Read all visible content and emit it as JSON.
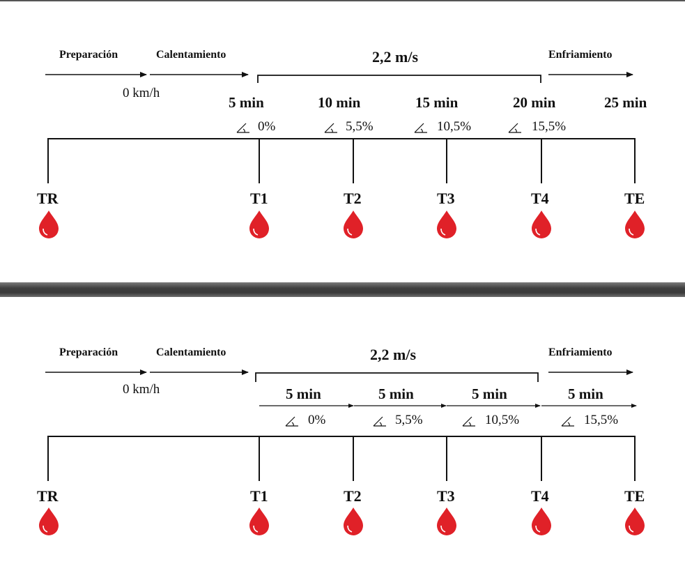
{
  "top": {
    "phases": {
      "preparation": "Preparación",
      "warmup": "Calentamiento",
      "cooldown": "Enfriamiento"
    },
    "speed": "2,2 m/s",
    "rest_speed": "0 km/h",
    "times": [
      "5 min",
      "10 min",
      "15 min",
      "20 min",
      "25 min"
    ],
    "slopes": [
      "0%",
      "5,5%",
      "10,5%",
      "15,5%"
    ],
    "points": [
      "TR",
      "T1",
      "T2",
      "T3",
      "T4",
      "TE"
    ]
  },
  "bottom": {
    "phases": {
      "preparation": "Preparación",
      "warmup": "Calentamiento",
      "cooldown": "Enfriamiento"
    },
    "speed": "2,2 m/s",
    "rest_speed": "0 km/h",
    "times": [
      "5 min",
      "5 min",
      "5 min",
      "5 min"
    ],
    "slopes": [
      "0%",
      "5,5%",
      "10,5%",
      "15,5%"
    ],
    "points": [
      "TR",
      "T1",
      "T2",
      "T3",
      "T4",
      "TE"
    ]
  },
  "colors": {
    "drop": "#e02128",
    "line": "#111111"
  },
  "icons": {
    "slope": "slope-angle-icon",
    "drop": "blood-drop-icon"
  }
}
